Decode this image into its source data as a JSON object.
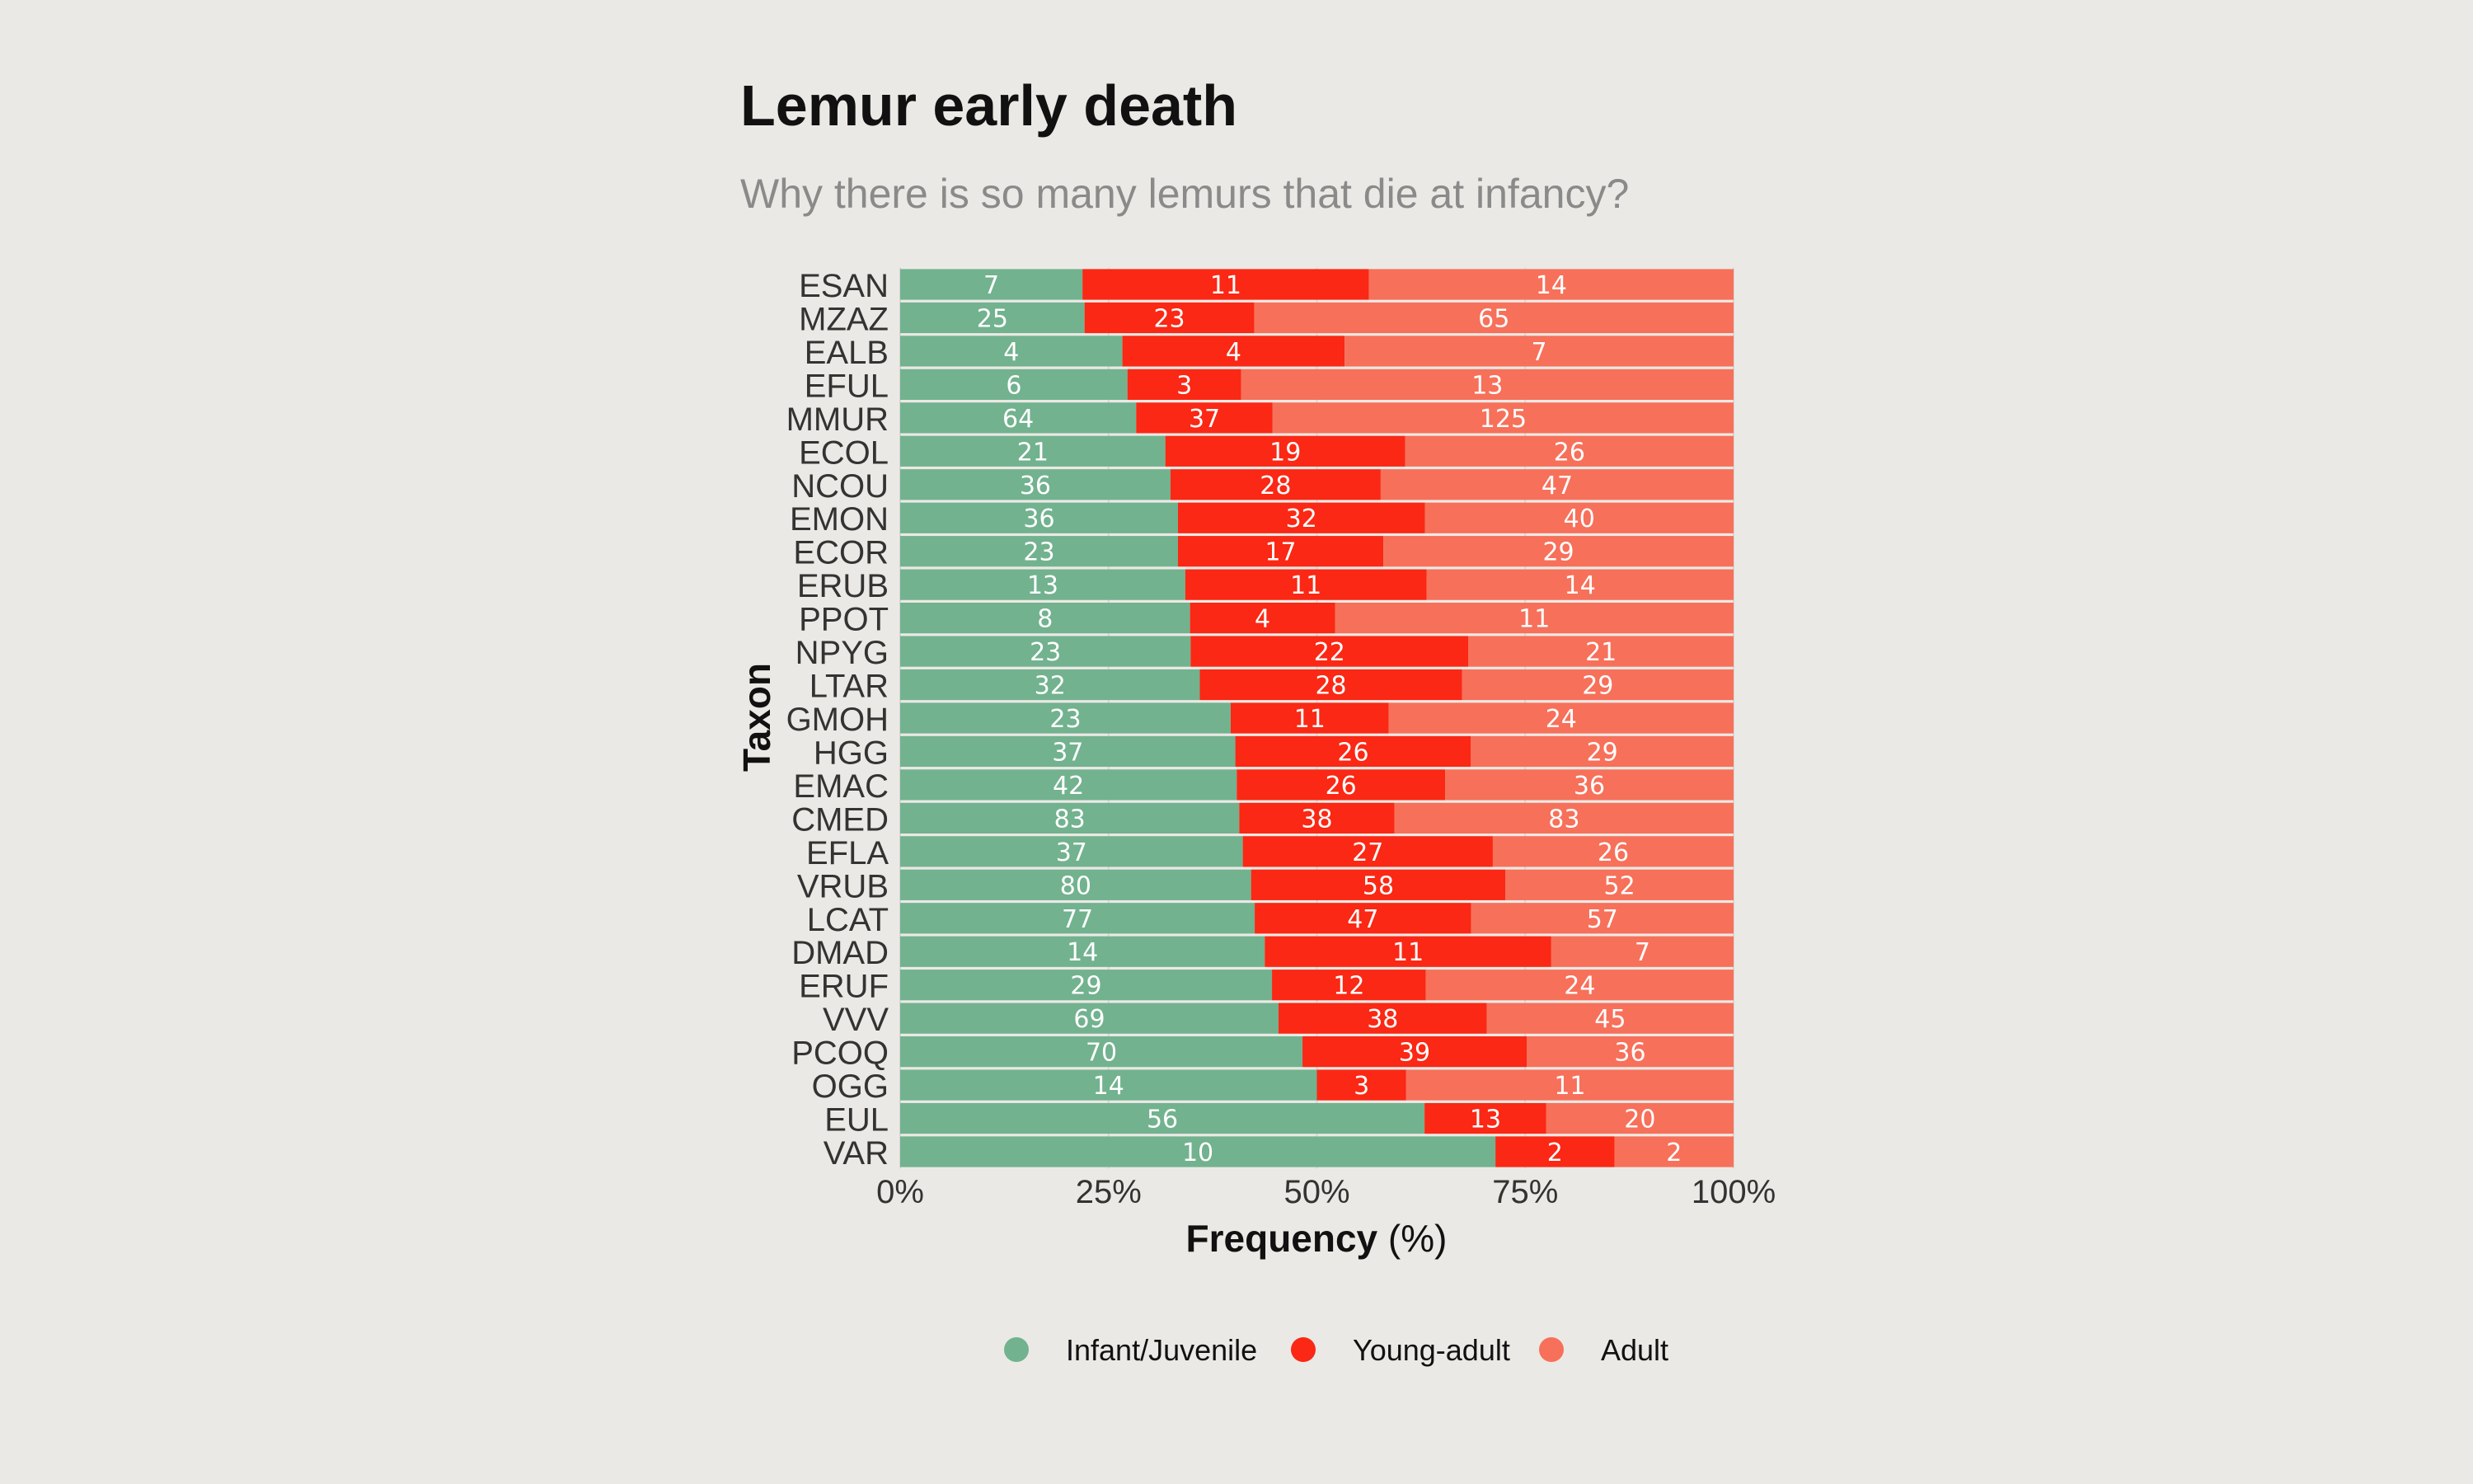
{
  "chart_data": {
    "type": "bar",
    "orientation": "horizontal",
    "stacked": "percent",
    "title": "Lemur early death",
    "subtitle": "Why there is so many lemurs that die at infancy?",
    "ylabel": "Taxon",
    "xlabel_bold": "Frequency",
    "xlabel_rest": " (%)",
    "xlim": [
      0,
      100
    ],
    "x_ticks": [
      "0%",
      "25%",
      "50%",
      "75%",
      "100%"
    ],
    "legend_position": "bottom",
    "grid": true,
    "categories": [
      "ESAN",
      "MZAZ",
      "EALB",
      "EFUL",
      "MMUR",
      "ECOL",
      "NCOU",
      "EMON",
      "ECOR",
      "ERUB",
      "PPOT",
      "NPYG",
      "LTAR",
      "GMOH",
      "HGG",
      "EMAC",
      "CMED",
      "EFLA",
      "VRUB",
      "LCAT",
      "DMAD",
      "ERUF",
      "VVV",
      "PCOQ",
      "OGG",
      "EUL",
      "VAR"
    ],
    "series": [
      {
        "name": "Infant/Juvenile",
        "color": "#72b28f",
        "values": [
          7,
          25,
          4,
          6,
          64,
          21,
          36,
          36,
          23,
          13,
          8,
          23,
          32,
          23,
          37,
          42,
          83,
          37,
          80,
          77,
          14,
          29,
          69,
          70,
          14,
          56,
          10
        ]
      },
      {
        "name": "Young-adult",
        "color": "#fa2814",
        "values": [
          11,
          23,
          4,
          3,
          37,
          19,
          28,
          32,
          17,
          11,
          4,
          22,
          28,
          11,
          26,
          26,
          38,
          27,
          58,
          47,
          11,
          12,
          38,
          39,
          3,
          13,
          2
        ]
      },
      {
        "name": "Adult",
        "color": "#f7705a",
        "values": [
          14,
          65,
          7,
          13,
          125,
          26,
          47,
          40,
          29,
          14,
          11,
          21,
          29,
          24,
          29,
          36,
          83,
          26,
          52,
          57,
          7,
          24,
          45,
          36,
          11,
          20,
          2
        ]
      }
    ]
  }
}
